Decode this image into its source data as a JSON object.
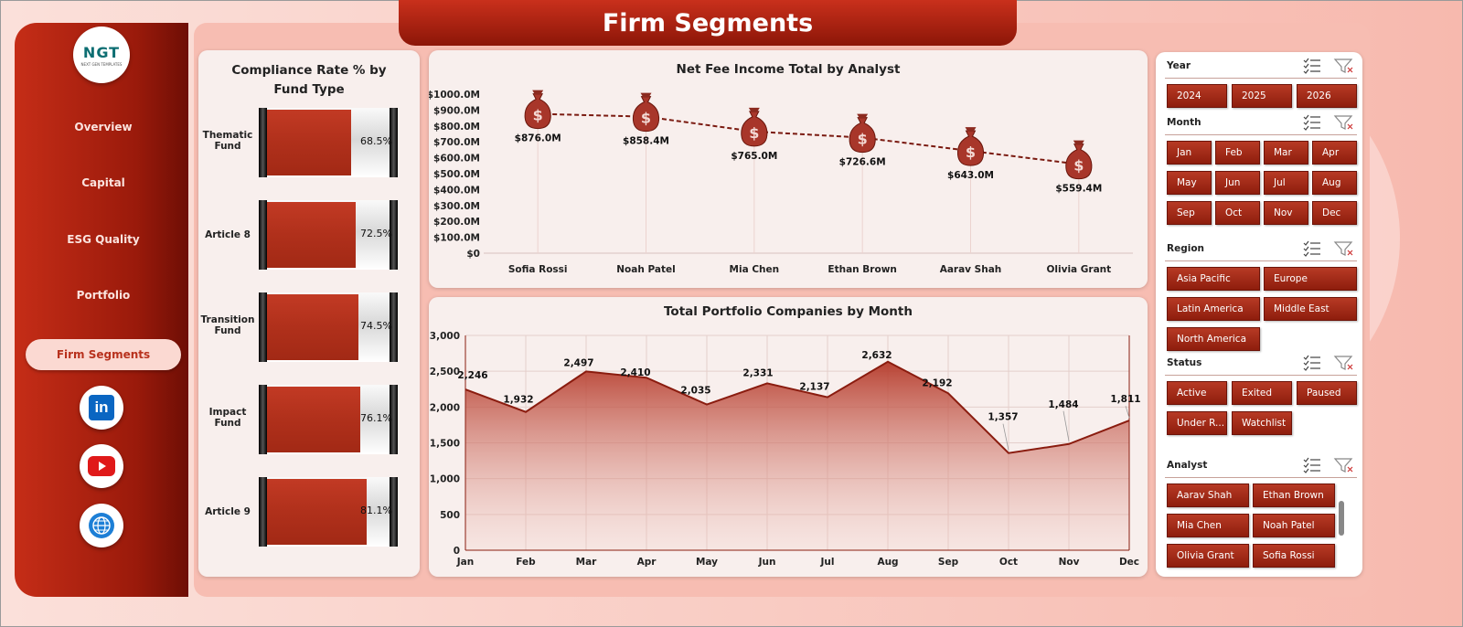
{
  "title": "Firm Segments",
  "logo": {
    "text": "NGT",
    "subtext": "NEXT GEN TEMPLATES"
  },
  "nav": [
    {
      "label": "Overview",
      "active": false
    },
    {
      "label": "Capital",
      "active": false
    },
    {
      "label": "ESG Quality",
      "active": false
    },
    {
      "label": "Portfolio",
      "active": false
    },
    {
      "label": "Firm Segments",
      "active": true
    }
  ],
  "social": [
    {
      "icon": "linkedin-icon",
      "label": "in"
    },
    {
      "icon": "youtube-icon"
    },
    {
      "icon": "globe-icon"
    }
  ],
  "compliance": {
    "title_line1": "Compliance Rate % by",
    "title_line2": "Fund Type",
    "items": [
      {
        "label_line1": "Thematic",
        "label_line2": "Fund",
        "value": 68.5,
        "pct_label": "68.5%"
      },
      {
        "label_line1": "Article 8",
        "label_line2": "",
        "value": 72.5,
        "pct_label": "72.5%"
      },
      {
        "label_line1": "Transition",
        "label_line2": "Fund",
        "value": 74.5,
        "pct_label": "74.5%"
      },
      {
        "label_line1": "Impact",
        "label_line2": "Fund",
        "value": 76.1,
        "pct_label": "76.1%"
      },
      {
        "label_line1": "Article 9",
        "label_line2": "",
        "value": 81.1,
        "pct_label": "81.1%"
      }
    ],
    "accent": "#b0301b"
  },
  "chart_data": [
    {
      "type": "line",
      "title": "Net Fee Income Total by Analyst",
      "categories": [
        "Sofia Rossi",
        "Noah Patel",
        "Mia Chen",
        "Ethan Brown",
        "Aarav Shah",
        "Olivia Grant"
      ],
      "values": [
        876.0,
        858.4,
        765.0,
        726.6,
        643.0,
        559.4
      ],
      "data_labels": [
        "$876.0M",
        "$858.4M",
        "$765.0M",
        "$726.6M",
        "$643.0M",
        "$559.4M"
      ],
      "yticks": [
        "$0",
        "$100.0M",
        "$200.0M",
        "$300.0M",
        "$400.0M",
        "$500.0M",
        "$600.0M",
        "$700.0M",
        "$800.0M",
        "$900.0M",
        "$1000.0M"
      ],
      "ylim": [
        0,
        1000
      ],
      "marker": "money-bag-icon",
      "line_style": "dashed",
      "color": "#7a1a10"
    },
    {
      "type": "area",
      "title": "Total Portfolio Companies by Month",
      "categories": [
        "Jan",
        "Feb",
        "Mar",
        "Apr",
        "May",
        "Jun",
        "Jul",
        "Aug",
        "Sep",
        "Oct",
        "Nov",
        "Dec"
      ],
      "values": [
        2246,
        1932,
        2497,
        2410,
        2035,
        2331,
        2137,
        2632,
        2192,
        1357,
        1484,
        1811
      ],
      "data_labels": [
        "2,246",
        "1,932",
        "2,497",
        "2,410",
        "2,035",
        "2,331",
        "2,137",
        "2,632",
        "2,192",
        "1,357",
        "1,484",
        "1,811"
      ],
      "yticks": [
        "0",
        "500",
        "1,000",
        "1,500",
        "2,000",
        "2,500",
        "3,000"
      ],
      "ylim": [
        0,
        3000
      ],
      "grid": true,
      "color": "#8a1c0f"
    }
  ],
  "slicers": {
    "year": {
      "title": "Year",
      "options": [
        "2024",
        "2025",
        "2026"
      ]
    },
    "month": {
      "title": "Month",
      "options": [
        "Jan",
        "Feb",
        "Mar",
        "Apr",
        "May",
        "Jun",
        "Jul",
        "Aug",
        "Sep",
        "Oct",
        "Nov",
        "Dec"
      ]
    },
    "region": {
      "title": "Region",
      "options": [
        "Asia Pacific",
        "Europe",
        "Latin America",
        "Middle East",
        "North America"
      ]
    },
    "status": {
      "title": "Status",
      "options": [
        "Active",
        "Exited",
        "Paused",
        "Under R...",
        "Watchlist"
      ]
    },
    "analyst": {
      "title": "Analyst",
      "options": [
        "Aarav Shah",
        "Ethan Brown",
        "Mia Chen",
        "Noah Patel",
        "Olivia Grant",
        "Sofia Rossi"
      ]
    }
  }
}
